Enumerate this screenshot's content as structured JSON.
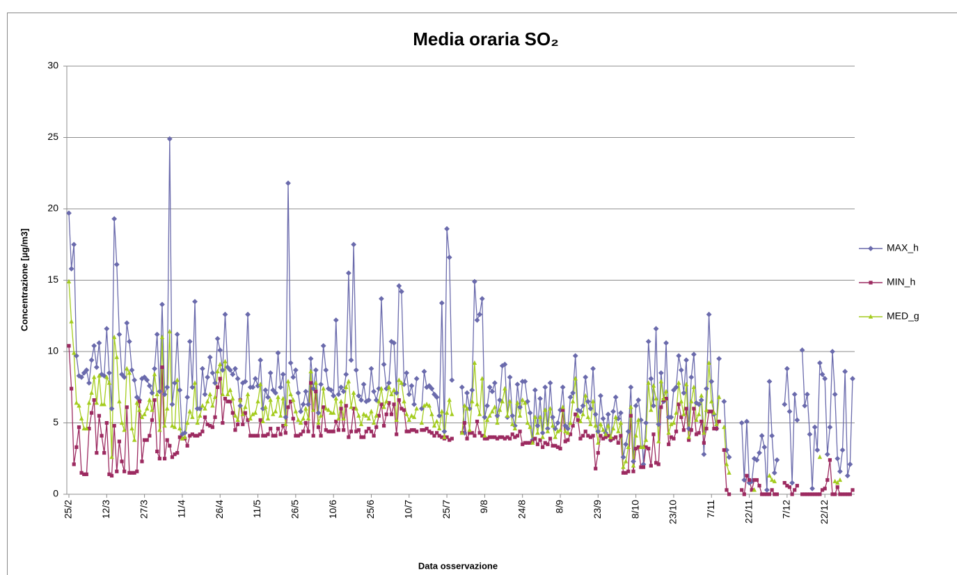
{
  "chart_data": {
    "type": "line",
    "title": "Media oraria SO₂",
    "x_label": "Data osservazione",
    "y_label": "Concentrazione [µg/m3]",
    "ylim": [
      0,
      30
    ],
    "yticks": [
      0,
      5,
      10,
      15,
      20,
      25,
      30
    ],
    "grid": true,
    "legend": "right",
    "categories": [
      "25/2",
      null,
      null,
      null,
      null,
      null,
      null,
      null,
      null,
      null,
      null,
      null,
      null,
      null,
      null,
      "12/3",
      null,
      null,
      null,
      null,
      null,
      null,
      null,
      null,
      null,
      null,
      null,
      null,
      null,
      null,
      "27/3",
      null,
      null,
      null,
      null,
      null,
      null,
      null,
      null,
      null,
      null,
      null,
      null,
      null,
      null,
      "11/4",
      null,
      null,
      null,
      null,
      null,
      null,
      null,
      null,
      null,
      null,
      null,
      null,
      null,
      null,
      "26/4",
      null,
      null,
      null,
      null,
      null,
      null,
      null,
      null,
      null,
      null,
      null,
      null,
      null,
      null,
      "11/5",
      null,
      null,
      null,
      null,
      null,
      null,
      null,
      null,
      null,
      null,
      null,
      null,
      null,
      null,
      "26/5",
      null,
      null,
      null,
      null,
      null,
      null,
      null,
      null,
      null,
      null,
      null,
      null,
      null,
      null,
      "10/6",
      null,
      null,
      null,
      null,
      null,
      null,
      null,
      null,
      null,
      null,
      null,
      null,
      null,
      null,
      "25/6",
      null,
      null,
      null,
      null,
      null,
      null,
      null,
      null,
      null,
      null,
      null,
      null,
      null,
      null,
      "10/7",
      null,
      null,
      null,
      null,
      null,
      null,
      null,
      null,
      null,
      null,
      null,
      null,
      null,
      null,
      "25/7",
      null,
      null,
      null,
      null,
      null,
      null,
      null,
      null,
      null,
      null,
      null,
      null,
      null,
      null,
      "9/8",
      null,
      null,
      null,
      null,
      null,
      null,
      null,
      null,
      null,
      null,
      null,
      null,
      null,
      null,
      "24/8",
      null,
      null,
      null,
      null,
      null,
      null,
      null,
      null,
      null,
      null,
      null,
      null,
      null,
      null,
      "8/9",
      null,
      null,
      null,
      null,
      null,
      null,
      null,
      null,
      null,
      null,
      null,
      null,
      null,
      null,
      "23/9",
      null,
      null,
      null,
      null,
      null,
      null,
      null,
      null,
      null,
      null,
      null,
      null,
      null,
      null,
      "8/10",
      null,
      null,
      null,
      null,
      null,
      null,
      null,
      null,
      null,
      null,
      null,
      null,
      null,
      null,
      "23/10",
      null,
      null,
      null,
      null,
      null,
      null,
      null,
      null,
      null,
      null,
      null,
      null,
      null,
      null,
      "7/11",
      null,
      null,
      null,
      null,
      null,
      null,
      null,
      null,
      null,
      null,
      null,
      null,
      null,
      null,
      "22/11",
      null,
      null,
      null,
      null,
      null,
      null,
      null,
      null,
      null,
      null,
      null,
      null,
      null,
      null,
      "7/12",
      null,
      null,
      null,
      null,
      null,
      null,
      null,
      null,
      null,
      null,
      null,
      null,
      null,
      null,
      "22/12",
      null,
      null,
      null,
      null,
      null,
      null,
      null,
      null,
      null,
      null,
      null
    ],
    "series": [
      {
        "name": "MAX_h",
        "color": "#6a6aac",
        "marker": "diamond",
        "values": [
          19.7,
          15.8,
          17.5,
          9.7,
          8.3,
          8.2,
          8.5,
          8.7,
          7.8,
          9.4,
          10.4,
          8.9,
          10.6,
          8.4,
          8.3,
          11.6,
          8.5,
          6.0,
          19.3,
          16.1,
          11.2,
          8.4,
          8.2,
          12.0,
          10.7,
          8.7,
          8.0,
          6.8,
          6.6,
          8.1,
          8.2,
          8.0,
          7.6,
          7.1,
          8.8,
          11.2,
          7.2,
          13.3,
          7.0,
          7.5,
          24.9,
          6.3,
          7.8,
          11.2,
          7.3,
          4.2,
          4.3,
          6.8,
          10.7,
          7.5,
          13.5,
          6.0,
          6.0,
          8.8,
          7.0,
          8.2,
          9.6,
          8.5,
          7.8,
          10.9,
          10.1,
          8.7,
          12.6,
          8.9,
          8.7,
          8.4,
          8.8,
          8.1,
          6.2,
          7.8,
          7.9,
          12.6,
          7.5,
          7.5,
          8.1,
          7.6,
          9.4,
          6.0,
          7.3,
          6.8,
          8.5,
          7.3,
          7.1,
          9.9,
          7.5,
          8.4,
          5.4,
          21.8,
          9.2,
          8.2,
          8.7,
          7.1,
          5.8,
          6.3,
          7.2,
          6.3,
          9.5,
          7.4,
          8.7,
          5.7,
          7.7,
          10.4,
          8.7,
          7.4,
          7.3,
          6.9,
          12.2,
          7.0,
          7.5,
          7.2,
          8.4,
          15.5,
          9.4,
          17.5,
          8.7,
          6.9,
          6.6,
          7.7,
          6.5,
          6.6,
          8.8,
          7.2,
          6.6,
          7.4,
          13.7,
          9.1,
          7.4,
          7.8,
          10.7,
          10.6,
          7.1,
          14.6,
          14.2,
          7.7,
          8.5,
          7.0,
          7.6,
          6.3,
          8.1,
          null,
          6.0,
          8.6,
          7.5,
          7.6,
          7.4,
          7.0,
          6.8,
          5.5,
          13.4,
          4.4,
          18.6,
          16.6,
          8.0,
          null,
          null,
          null,
          7.5,
          4.3,
          7.1,
          6.0,
          7.3,
          14.9,
          12.2,
          12.6,
          13.7,
          5.4,
          6.2,
          7.5,
          7.2,
          7.8,
          5.5,
          6.6,
          9.0,
          9.1,
          5.4,
          8.2,
          5.5,
          4.8,
          7.7,
          6.1,
          7.9,
          7.9,
          6.5,
          5.7,
          3.8,
          7.3,
          4.8,
          6.7,
          4.3,
          7.5,
          4.6,
          7.8,
          5.4,
          4.6,
          5.0,
          5.9,
          7.5,
          4.8,
          4.6,
          6.8,
          7.1,
          9.7,
          5.9,
          5.8,
          6.2,
          8.2,
          6.5,
          6.0,
          8.8,
          5.6,
          4.4,
          6.9,
          5.3,
          4.3,
          5.6,
          3.8,
          5.8,
          6.8,
          5.3,
          5.7,
          2.6,
          3.5,
          4.4,
          7.5,
          2.3,
          6.2,
          6.6,
          5.2,
          2.1,
          5.0,
          10.7,
          8.1,
          6.2,
          11.6,
          4.9,
          8.5,
          6.5,
          10.6,
          5.4,
          5.4,
          7.3,
          7.5,
          9.7,
          8.7,
          7.1,
          9.4,
          4.6,
          8.2,
          9.8,
          6.4,
          6.3,
          6.6,
          2.8,
          7.4,
          12.6,
          7.9,
          5.6,
          4.6,
          9.5,
          null,
          6.5,
          3.1,
          2.6,
          null,
          null,
          null,
          null,
          5.0,
          1.0,
          5.1,
          0.8,
          0.9,
          2.5,
          2.4,
          2.9,
          4.1,
          3.3,
          0.3,
          7.9,
          4.1,
          1.5,
          2.4,
          null,
          null,
          6.3,
          8.8,
          5.8,
          0.8,
          7.0,
          5.2,
          null,
          10.1,
          6.2,
          7.0,
          4.2,
          0.4,
          4.7,
          3.1,
          9.2,
          8.4,
          8.1,
          2.8,
          4.7,
          10.0,
          7.0,
          2.5,
          1.6,
          3.1,
          8.6,
          1.3,
          2.1,
          8.1
        ]
      },
      {
        "name": "MIN_h",
        "color": "#9c2a60",
        "marker": "square",
        "values": [
          10.4,
          7.4,
          2.1,
          3.3,
          4.7,
          1.5,
          1.4,
          1.4,
          4.6,
          5.7,
          6.6,
          2.9,
          5.5,
          4.1,
          2.9,
          5.0,
          1.4,
          1.3,
          4.8,
          1.6,
          3.7,
          2.3,
          1.6,
          6.1,
          1.5,
          1.5,
          1.5,
          1.6,
          6.5,
          2.3,
          3.8,
          3.8,
          4.1,
          5.2,
          6.6,
          3.0,
          2.5,
          8.9,
          2.5,
          3.8,
          3.4,
          2.6,
          2.8,
          2.9,
          4.0,
          3.9,
          3.9,
          3.4,
          4.1,
          4.2,
          4.1,
          4.1,
          4.2,
          4.4,
          5.4,
          4.9,
          4.8,
          4.7,
          5.4,
          7.5,
          8.1,
          5.0,
          6.7,
          6.5,
          6.5,
          5.7,
          4.5,
          4.9,
          6.6,
          4.9,
          5.7,
          5.2,
          4.1,
          4.1,
          4.1,
          4.1,
          5.2,
          4.1,
          4.1,
          4.2,
          4.6,
          4.1,
          4.1,
          4.6,
          4.2,
          4.8,
          4.3,
          6.1,
          6.5,
          5.3,
          4.1,
          4.1,
          4.2,
          4.4,
          5.0,
          4.4,
          7.8,
          4.1,
          7.2,
          4.7,
          4.1,
          6.1,
          4.5,
          4.4,
          4.4,
          4.4,
          5.1,
          4.5,
          6.0,
          4.5,
          6.2,
          4.0,
          4.4,
          6.0,
          4.4,
          4.5,
          4.0,
          4.0,
          4.4,
          4.6,
          4.4,
          4.1,
          4.7,
          5.5,
          6.3,
          4.8,
          5.6,
          6.4,
          5.6,
          6.3,
          4.2,
          6.6,
          6.0,
          5.9,
          4.4,
          4.4,
          4.5,
          4.5,
          4.4,
          null,
          4.5,
          4.5,
          4.6,
          4.4,
          4.3,
          4.1,
          4.3,
          4.1,
          4.0,
          3.9,
          4.0,
          3.8,
          3.9,
          null,
          null,
          null,
          4.3,
          5.0,
          3.9,
          4.3,
          4.3,
          4.1,
          5.1,
          4.3,
          4.1,
          3.9,
          3.9,
          4.0,
          4.0,
          4.0,
          3.9,
          4.0,
          4.0,
          3.9,
          4.0,
          3.9,
          4.2,
          4.0,
          4.1,
          4.4,
          3.5,
          3.6,
          3.6,
          3.6,
          3.7,
          3.9,
          3.5,
          3.8,
          3.3,
          3.6,
          3.5,
          3.9,
          3.4,
          3.4,
          3.3,
          3.2,
          5.9,
          3.7,
          3.8,
          4.2,
          4.8,
          5.6,
          5.2,
          3.9,
          4.1,
          4.4,
          4.1,
          4.0,
          4.1,
          1.8,
          2.9,
          4.1,
          3.9,
          4.0,
          4.1,
          3.8,
          3.9,
          4.0,
          3.6,
          4.1,
          1.5,
          1.5,
          1.6,
          5.5,
          1.6,
          3.2,
          3.3,
          1.9,
          1.9,
          3.3,
          3.2,
          2.0,
          4.2,
          2.2,
          2.1,
          6.1,
          6.6,
          6.7,
          3.5,
          4.0,
          3.9,
          4.4,
          6.3,
          5.4,
          4.5,
          6.0,
          3.8,
          4.5,
          6.0,
          4.2,
          4.3,
          5.1,
          3.6,
          4.6,
          5.8,
          5.8,
          4.6,
          4.6,
          5.1,
          null,
          3.1,
          0.3,
          0.0,
          null,
          null,
          null,
          null,
          0.3,
          0.0,
          1.3,
          1.0,
          0.3,
          1.0,
          1.0,
          0.6,
          0.0,
          0.0,
          0.0,
          0.0,
          0.3,
          0.0,
          0.0,
          null,
          null,
          0.8,
          0.6,
          0.5,
          0.0,
          0.3,
          0.6,
          null,
          0.0,
          0.0,
          0.0,
          0.0,
          0.0,
          0.0,
          0.0,
          0.0,
          0.3,
          0.4,
          1.0,
          2.4,
          0.0,
          0.0,
          0.5,
          0.0,
          0.0,
          0.0,
          0.0,
          0.0,
          0.3
        ]
      },
      {
        "name": "MED_g",
        "color": "#a4cc1e",
        "marker": "triangle",
        "values": [
          14.9,
          12.1,
          9.9,
          6.4,
          6.2,
          5.3,
          4.6,
          4.6,
          6.4,
          7.1,
          8.2,
          6.4,
          8.3,
          6.3,
          6.3,
          8.2,
          7.8,
          2.6,
          11.0,
          9.6,
          6.5,
          5.0,
          4.5,
          8.8,
          8.5,
          4.6,
          3.8,
          6.4,
          5.9,
          5.4,
          5.6,
          6.0,
          6.6,
          5.9,
          8.4,
          7.0,
          4.5,
          11.0,
          4.8,
          6.0,
          11.4,
          4.8,
          4.7,
          8.0,
          4.6,
          3.9,
          4.0,
          5.0,
          5.8,
          5.4,
          7.8,
          5.0,
          5.5,
          6.2,
          6.0,
          6.5,
          7.0,
          6.2,
          6.8,
          8.6,
          9.1,
          7.0,
          9.3,
          7.0,
          7.3,
          6.7,
          5.5,
          5.2,
          6.6,
          5.6,
          6.1,
          7.0,
          5.3,
          5.6,
          5.7,
          6.5,
          7.7,
          5.1,
          6.1,
          5.3,
          6.6,
          5.6,
          5.8,
          6.8,
          5.5,
          6.7,
          4.9,
          7.9,
          7.0,
          6.6,
          5.8,
          5.2,
          5.0,
          5.3,
          6.0,
          5.3,
          8.6,
          5.9,
          7.8,
          5.0,
          5.5,
          7.4,
          6.0,
          5.9,
          5.7,
          5.7,
          6.7,
          5.3,
          6.5,
          5.3,
          7.5,
          7.9,
          6.1,
          7.1,
          6.0,
          5.5,
          4.9,
          5.6,
          5.5,
          5.3,
          5.8,
          5.0,
          5.5,
          6.5,
          7.4,
          6.1,
          6.5,
          7.5,
          7.0,
          7.3,
          5.2,
          8.0,
          7.8,
          6.5,
          5.6,
          5.2,
          5.5,
          5.4,
          6.0,
          null,
          5.0,
          6.2,
          6.3,
          6.2,
          5.6,
          4.8,
          5.1,
          4.6,
          5.8,
          4.0,
          5.7,
          6.6,
          5.6,
          null,
          null,
          null,
          4.3,
          6.2,
          6.0,
          4.5,
          6.5,
          9.2,
          6.3,
          5.6,
          8.1,
          4.1,
          5.2,
          5.5,
          5.8,
          6.1,
          5.0,
          5.9,
          6.5,
          7.4,
          5.5,
          6.5,
          4.9,
          4.6,
          6.4,
          5.5,
          6.6,
          6.4,
          5.0,
          4.7,
          3.6,
          5.4,
          4.3,
          5.4,
          4.0,
          5.9,
          4.4,
          6.0,
          4.8,
          4.0,
          4.4,
          4.5,
          6.1,
          4.4,
          4.3,
          5.0,
          6.5,
          8.1,
          5.5,
          5.1,
          5.6,
          6.9,
          5.4,
          4.9,
          6.5,
          4.8,
          3.6,
          4.9,
          4.5,
          4.2,
          4.8,
          4.0,
          4.6,
          5.4,
          4.4,
          5.0,
          1.9,
          2.3,
          3.3,
          6.1,
          2.0,
          4.1,
          5.2,
          3.3,
          3.3,
          3.8,
          7.8,
          5.9,
          7.6,
          6.7,
          3.7,
          7.9,
          6.7,
          7.2,
          4.3,
          4.9,
          5.0,
          5.7,
          7.8,
          6.5,
          5.6,
          7.7,
          4.0,
          6.5,
          7.5,
          5.2,
          5.6,
          6.9,
          4.3,
          5.9,
          9.2,
          6.5,
          5.7,
          4.9,
          6.8,
          null,
          4.7,
          2.1,
          1.5,
          null,
          null,
          null,
          null,
          null,
          null,
          null,
          null,
          null,
          0.3,
          null,
          null,
          null,
          null,
          null,
          1.3,
          1.0,
          0.9,
          null,
          null,
          null,
          null,
          null,
          null,
          null,
          null,
          null,
          null,
          null,
          null,
          null,
          null,
          null,
          null,
          null,
          2.6,
          null,
          null,
          null,
          null,
          null,
          0.9,
          0.8,
          1.0,
          null,
          null,
          null,
          null,
          null
        ]
      }
    ]
  }
}
